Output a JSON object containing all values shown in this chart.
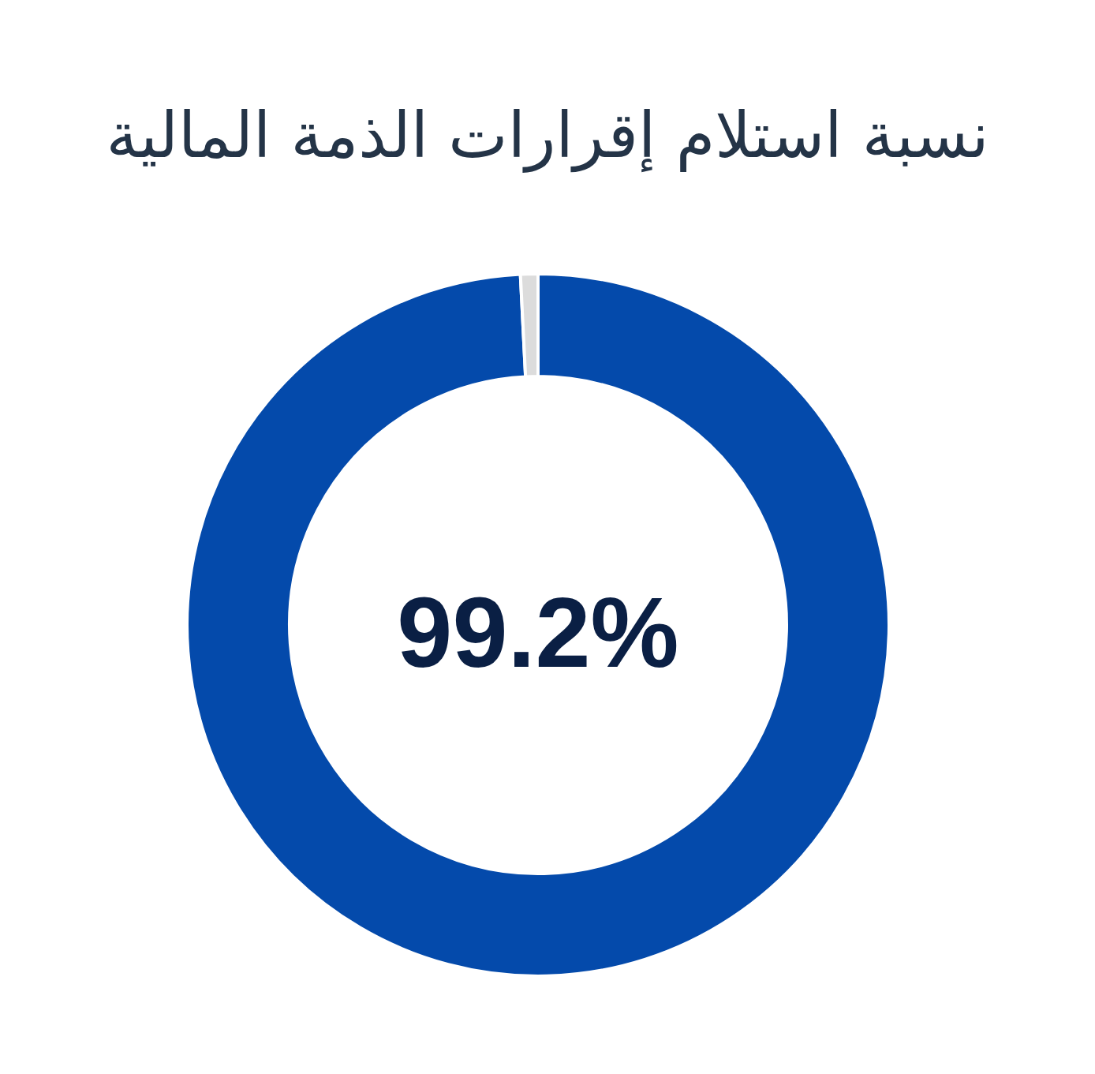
{
  "chart_data": {
    "type": "donut",
    "title": "نسبة استلام إقرارات الذمة المالية",
    "categories": [
      null,
      null
    ],
    "values": [
      99.2,
      0.8
    ],
    "colors": [
      "#044aab",
      "#dcdcdc"
    ],
    "annotations": [
      "99.2%"
    ]
  }
}
